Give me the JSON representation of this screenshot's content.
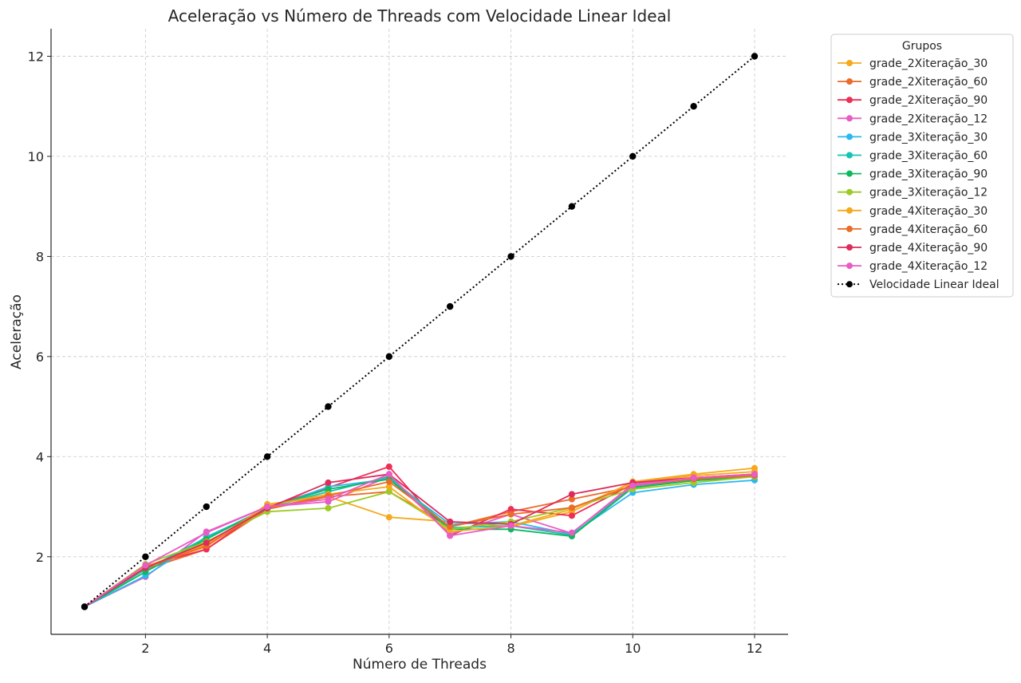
{
  "chart_data": {
    "type": "line",
    "title": "Aceleração vs Número de Threads com Velocidade Linear Ideal",
    "xlabel": "Número de Threads",
    "ylabel": "Aceleração",
    "xlim": [
      0.45,
      12.55
    ],
    "ylim": [
      0.45,
      12.55
    ],
    "xticks": [
      2,
      4,
      6,
      8,
      10,
      12
    ],
    "yticks": [
      2,
      4,
      6,
      8,
      10,
      12
    ],
    "grid": true,
    "legend": {
      "title": "Grupos",
      "placement": "outside-top-right"
    },
    "x": [
      1,
      2,
      3,
      4,
      5,
      6,
      7,
      8,
      9,
      10,
      11,
      12
    ],
    "series": [
      {
        "name": "grade_2Xiteração_30",
        "color": "#f5a91b",
        "style": "solid",
        "values": [
          1,
          1.8,
          2.2,
          3.05,
          3.2,
          2.79,
          2.7,
          2.6,
          2.9,
          3.5,
          3.65,
          3.77
        ]
      },
      {
        "name": "grade_2Xiteração_60",
        "color": "#ec6a2a",
        "style": "solid",
        "values": [
          1,
          1.75,
          2.15,
          2.95,
          3.2,
          3.3,
          2.6,
          2.9,
          3.15,
          3.4,
          3.55,
          3.6
        ]
      },
      {
        "name": "grade_2Xiteração_90",
        "color": "#ee2f55",
        "style": "solid",
        "values": [
          1,
          1.82,
          2.15,
          3.0,
          3.38,
          3.8,
          2.42,
          2.95,
          2.82,
          3.45,
          3.55,
          3.62
        ]
      },
      {
        "name": "grade_2Xiteração_12",
        "color": "#ea5cc5",
        "style": "solid",
        "values": [
          1,
          1.6,
          2.5,
          3.0,
          3.1,
          3.6,
          2.45,
          2.85,
          2.47,
          3.45,
          3.58,
          3.65
        ]
      },
      {
        "name": "grade_3Xiteração_30",
        "color": "#2bb8f0",
        "style": "solid",
        "values": [
          1,
          1.62,
          2.4,
          2.95,
          3.4,
          3.55,
          2.65,
          2.7,
          2.45,
          3.28,
          3.44,
          3.53
        ]
      },
      {
        "name": "grade_3Xiteração_60",
        "color": "#14c4b4",
        "style": "solid",
        "values": [
          1,
          1.75,
          2.38,
          2.98,
          3.3,
          3.6,
          2.58,
          2.62,
          2.43,
          3.4,
          3.52,
          3.6
        ]
      },
      {
        "name": "grade_3Xiteração_90",
        "color": "#0db95c",
        "style": "solid",
        "values": [
          1,
          1.7,
          2.35,
          2.98,
          3.35,
          3.55,
          2.55,
          2.55,
          2.41,
          3.38,
          3.52,
          3.62
        ]
      },
      {
        "name": "grade_3Xiteração_12",
        "color": "#9ccb22",
        "style": "solid",
        "values": [
          1,
          1.85,
          2.3,
          2.9,
          2.97,
          3.3,
          2.55,
          2.7,
          2.98,
          3.35,
          3.48,
          3.6
        ]
      },
      {
        "name": "grade_4Xiteração_30",
        "color": "#f5a91b",
        "style": "solid",
        "values": [
          1,
          1.8,
          2.25,
          3.02,
          3.25,
          3.4,
          2.5,
          2.62,
          2.95,
          3.48,
          3.62,
          3.7
        ]
      },
      {
        "name": "grade_4Xiteração_60",
        "color": "#ec6a2a",
        "style": "solid",
        "values": [
          1,
          1.78,
          2.22,
          2.97,
          3.22,
          3.5,
          2.6,
          2.85,
          2.98,
          3.42,
          3.55,
          3.62
        ]
      },
      {
        "name": "grade_4Xiteração_90",
        "color": "#dd2c5c",
        "style": "solid",
        "values": [
          1,
          1.78,
          2.28,
          2.97,
          3.48,
          3.65,
          2.7,
          2.65,
          3.25,
          3.48,
          3.58,
          3.65
        ]
      },
      {
        "name": "grade_4Xiteração_12",
        "color": "#ea5cc5",
        "style": "solid",
        "values": [
          1,
          1.83,
          2.48,
          3.0,
          3.15,
          3.65,
          2.42,
          2.62,
          2.48,
          3.42,
          3.58,
          3.65
        ]
      },
      {
        "name": "Velocidade Linear Ideal",
        "color": "#000000",
        "style": "dotted",
        "values": [
          1,
          2,
          3,
          4,
          5,
          6,
          7,
          8,
          9,
          10,
          11,
          12
        ]
      }
    ]
  }
}
